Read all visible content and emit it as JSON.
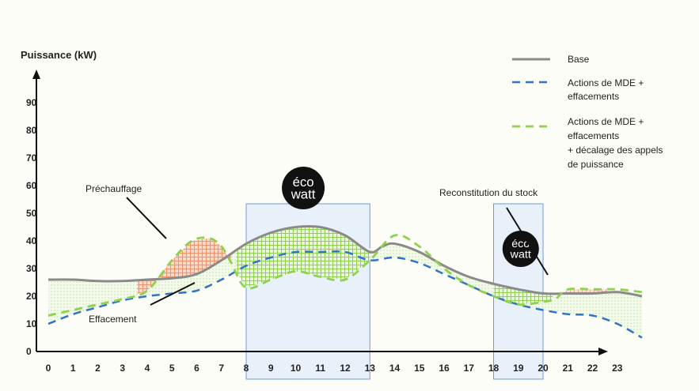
{
  "chart_data": {
    "type": "line",
    "ylabel": "Puissance (kW)",
    "xlabel": "",
    "x_ticks": [
      "0",
      "1",
      "2",
      "3",
      "4",
      "5",
      "6",
      "7",
      "8",
      "9",
      "10",
      "11",
      "12",
      "13",
      "14",
      "15",
      "16",
      "17",
      "18",
      "19",
      "20",
      "21",
      "22",
      "23"
    ],
    "y_ticks": [
      "0",
      "10",
      "20",
      "30",
      "40",
      "50",
      "60",
      "70",
      "80",
      "90"
    ],
    "xlim": [
      0,
      24.5
    ],
    "ylim": [
      0,
      100
    ],
    "grid": false,
    "legend_position": "top-right",
    "series": [
      {
        "name": "Base",
        "style": "solid",
        "color": "#8a8a8a",
        "points": [
          [
            0,
            26
          ],
          [
            1,
            26
          ],
          [
            2,
            25.5
          ],
          [
            3,
            25.5
          ],
          [
            4,
            26
          ],
          [
            5,
            26.5
          ],
          [
            6,
            28
          ],
          [
            7,
            33
          ],
          [
            8,
            39
          ],
          [
            9,
            43
          ],
          [
            10,
            45
          ],
          [
            11,
            45
          ],
          [
            12,
            42
          ],
          [
            13,
            36
          ],
          [
            13.5,
            38
          ],
          [
            14,
            39
          ],
          [
            15,
            36
          ],
          [
            16,
            31
          ],
          [
            17,
            27
          ],
          [
            18,
            24.5
          ],
          [
            19,
            22.5
          ],
          [
            20,
            21
          ],
          [
            21,
            21
          ],
          [
            22,
            21
          ],
          [
            23,
            21.5
          ],
          [
            24,
            20
          ]
        ]
      },
      {
        "name": "Actions de MDE + effacements",
        "style": "dashed",
        "color": "#2f74c8",
        "points": [
          [
            0,
            10
          ],
          [
            1,
            13.5
          ],
          [
            2,
            16
          ],
          [
            3,
            18.5
          ],
          [
            4,
            20
          ],
          [
            5,
            21
          ],
          [
            6,
            22
          ],
          [
            7,
            26
          ],
          [
            8,
            31
          ],
          [
            9,
            34
          ],
          [
            10,
            36
          ],
          [
            11,
            36
          ],
          [
            12,
            36
          ],
          [
            13,
            33
          ],
          [
            14,
            34
          ],
          [
            15,
            32
          ],
          [
            16,
            28
          ],
          [
            17,
            24
          ],
          [
            18,
            20
          ],
          [
            19,
            17
          ],
          [
            20,
            15
          ],
          [
            21,
            13.5
          ],
          [
            22,
            13
          ],
          [
            23,
            10
          ],
          [
            24,
            5
          ]
        ]
      },
      {
        "name": "Actions de MDE + effacements + décalage des appels de puissance",
        "style": "dashed",
        "color": "#8fd14f",
        "points": [
          [
            0,
            13
          ],
          [
            1,
            15
          ],
          [
            2,
            17
          ],
          [
            3,
            19
          ],
          [
            4,
            22
          ],
          [
            5,
            33
          ],
          [
            5.8,
            40
          ],
          [
            6.5,
            41
          ],
          [
            7,
            38
          ],
          [
            7.4,
            32
          ],
          [
            8,
            23
          ],
          [
            9,
            26
          ],
          [
            10,
            29
          ],
          [
            11,
            27
          ],
          [
            12,
            26
          ],
          [
            13,
            33
          ],
          [
            14,
            42
          ],
          [
            15,
            38
          ],
          [
            16,
            30
          ],
          [
            17,
            24
          ],
          [
            18,
            20
          ],
          [
            19,
            17
          ],
          [
            20,
            18
          ],
          [
            20.5,
            19
          ],
          [
            21,
            22.5
          ],
          [
            22,
            22.5
          ],
          [
            23,
            22.5
          ],
          [
            24,
            21.5
          ]
        ]
      }
    ],
    "annotations": [
      "Préchauffage",
      "Effacement",
      "Reconstitution du stock"
    ],
    "legend_labels": {
      "base": "Base",
      "mde": [
        "Actions de MDE +",
        "effacements"
      ],
      "shift": [
        "Actions de MDE +",
        "effacements",
        "+ décalage des appels",
        "de puissance"
      ]
    },
    "ecowatt_windows": [
      [
        8,
        13
      ],
      [
        18,
        20
      ]
    ],
    "badge": {
      "line1": "éco",
      "line2": "watt"
    },
    "colors": {
      "base": "#8a8a8a",
      "mde": "#2f74c8",
      "shift": "#8fd14f",
      "preheat_fill": "#f4a88a",
      "shift_fill": "#8fd14f",
      "window_fill": "#e8f0fa",
      "window_stroke": "#6e9cd8",
      "badge_bg": "#111111"
    }
  }
}
